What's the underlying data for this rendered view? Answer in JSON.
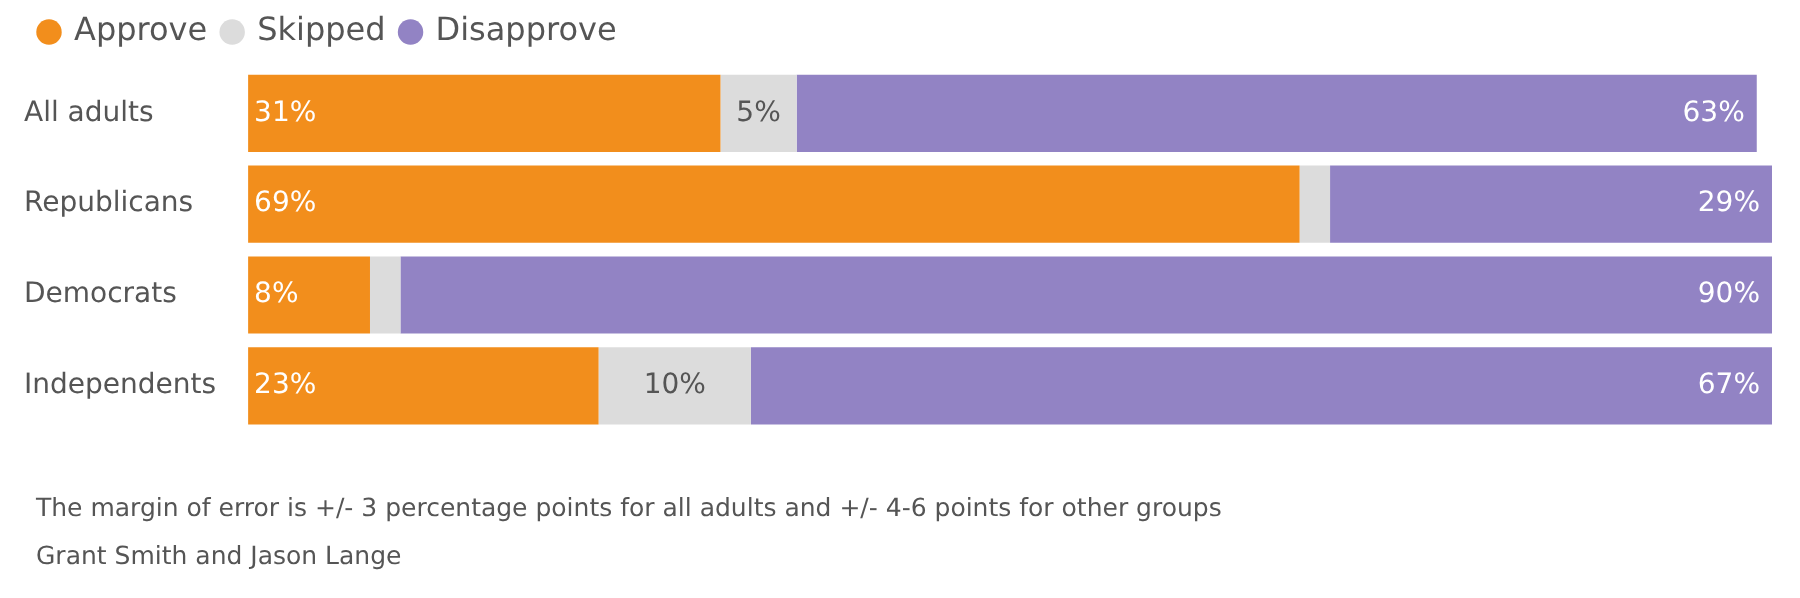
{
  "chart_data": {
    "type": "bar",
    "orientation": "horizontal",
    "stacked": true,
    "categories": [
      "All adults",
      "Republicans",
      "Democrats",
      "Independents"
    ],
    "series": [
      {
        "name": "Approve",
        "color": "#f28e1c",
        "values": [
          31,
          69,
          8,
          23
        ],
        "value_labels": [
          "31%",
          "69%",
          "8%",
          "23%"
        ]
      },
      {
        "name": "Skipped",
        "color": "#dcdcdc",
        "values": [
          5,
          2,
          2,
          10
        ],
        "value_labels": [
          "5%",
          null,
          null,
          "10%"
        ]
      },
      {
        "name": "Disapprove",
        "color": "#9283c4",
        "values": [
          63,
          29,
          90,
          67
        ],
        "value_labels": [
          "63%",
          "29%",
          "90%",
          "67%"
        ]
      }
    ],
    "xlim": [
      0,
      100
    ],
    "tick_labels": "y",
    "grid": false,
    "legend": "top left",
    "marker": "circle",
    "annotations": [
      "The margin of error is +/- 3 percentage points for all adults and +/- 4-6 points for other groups",
      "Grant Smith and Jason Lange"
    ]
  }
}
